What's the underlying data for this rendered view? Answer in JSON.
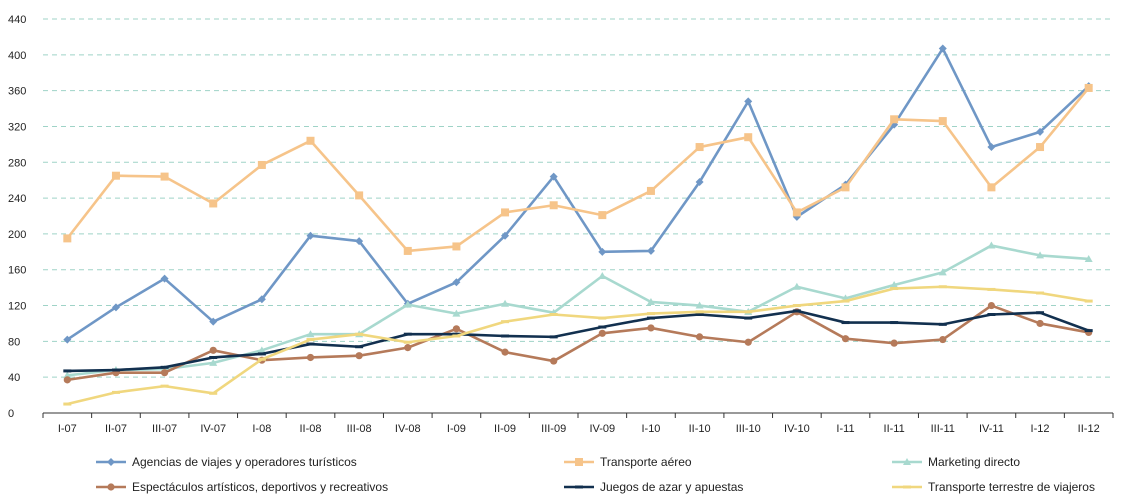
{
  "chart_data": {
    "type": "line",
    "title": "",
    "xlabel": "",
    "ylabel": "",
    "ylim": [
      0,
      440
    ],
    "yticks": [
      "0",
      "40",
      "80",
      "120",
      "160",
      "200",
      "240",
      "280",
      "320",
      "360",
      "400",
      "440"
    ],
    "grid": "horizontal dashed",
    "legend_position": "bottom",
    "categories": [
      "I-07",
      "II-07",
      "III-07",
      "IV-07",
      "I-08",
      "II-08",
      "III-08",
      "IV-08",
      "I-09",
      "II-09",
      "III-09",
      "IV-09",
      "I-10",
      "II-10",
      "III-10",
      "IV-10",
      "I-11",
      "II-11",
      "III-11",
      "IV-11",
      "I-12",
      "II-12"
    ],
    "series": [
      {
        "name": "Agencias de viajes y operadores turísticos",
        "color": "#6f97c6",
        "marker": "diamond",
        "values": [
          82,
          118,
          150,
          102,
          127,
          198,
          192,
          122,
          146,
          198,
          264,
          180,
          181,
          258,
          348,
          219,
          255,
          322,
          407,
          297,
          314,
          365
        ]
      },
      {
        "name": "Transporte aéreo",
        "color": "#f6c48a",
        "marker": "square",
        "values": [
          195,
          265,
          264,
          234,
          277,
          304,
          243,
          181,
          186,
          224,
          232,
          221,
          248,
          297,
          308,
          224,
          252,
          328,
          326,
          252,
          297,
          363
        ]
      },
      {
        "name": "Marketing directo",
        "color": "#a8d9cf",
        "marker": "triangle",
        "values": [
          42,
          48,
          49,
          56,
          70,
          88,
          88,
          121,
          111,
          122,
          112,
          153,
          124,
          120,
          113,
          141,
          128,
          143,
          157,
          187,
          176,
          172
        ]
      },
      {
        "name": "Espectáculos artísticos, deportivos y recreativos",
        "color": "#b57a5a",
        "marker": "circle",
        "values": [
          37,
          45,
          45,
          70,
          59,
          62,
          64,
          73,
          94,
          68,
          58,
          89,
          95,
          85,
          79,
          113,
          83,
          78,
          82,
          120,
          100,
          90
        ]
      },
      {
        "name": "Juegos de azar y apuestas",
        "color": "#12304f",
        "marker": "dash",
        "values": [
          47,
          48,
          51,
          62,
          66,
          77,
          74,
          88,
          88,
          86,
          85,
          96,
          106,
          110,
          106,
          114,
          101,
          101,
          99,
          110,
          112,
          92
        ]
      },
      {
        "name": "Transporte terrestre de viajeros",
        "color": "#f0d77e",
        "marker": "dash",
        "values": [
          10,
          23,
          30,
          22,
          60,
          82,
          88,
          79,
          86,
          102,
          110,
          106,
          111,
          113,
          113,
          120,
          125,
          139,
          141,
          138,
          134,
          125
        ]
      }
    ]
  }
}
